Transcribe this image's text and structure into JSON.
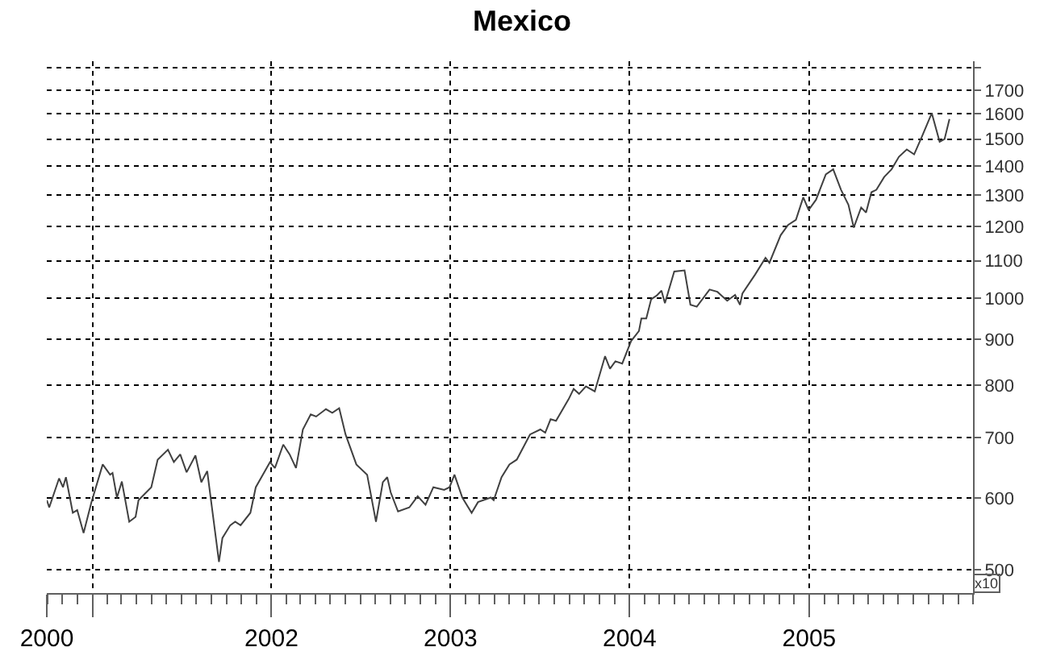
{
  "chart_data": {
    "type": "line",
    "title": "Mexico",
    "x": [
      "2000-09-30",
      "2000-10-05",
      "2000-10-25",
      "2000-11-02",
      "2000-11-08",
      "2000-11-22",
      "2000-12-01",
      "2000-12-14",
      "2000-12-30",
      "2001-01-22",
      "2001-02-06",
      "2001-02-11",
      "2001-02-20",
      "2001-03-02",
      "2001-03-17",
      "2001-03-30",
      "2001-04-05",
      "2001-05-01",
      "2001-05-14",
      "2001-06-04",
      "2001-06-16",
      "2001-06-29",
      "2001-07-12",
      "2001-07-30",
      "2001-08-11",
      "2001-08-23",
      "2001-09-16",
      "2001-09-23",
      "2001-10-09",
      "2001-10-19",
      "2001-10-30",
      "2001-11-19",
      "2001-11-30",
      "2001-12-29",
      "2002-01-08",
      "2002-01-25",
      "2002-02-07",
      "2002-02-20",
      "2002-03-06",
      "2002-03-22",
      "2002-04-02",
      "2002-04-22",
      "2002-05-05",
      "2002-05-19",
      "2002-06-01",
      "2002-06-23",
      "2002-07-15",
      "2002-08-02",
      "2002-08-16",
      "2002-08-25",
      "2002-09-01",
      "2002-09-16",
      "2002-10-09",
      "2002-10-26",
      "2002-11-11",
      "2002-11-27",
      "2002-12-19",
      "2002-12-30",
      "2003-01-09",
      "2003-01-25",
      "2003-02-13",
      "2003-02-26",
      "2003-03-24",
      "2003-03-30",
      "2003-04-15",
      "2003-05-01",
      "2003-05-16",
      "2003-06-12",
      "2003-07-03",
      "2003-07-13",
      "2003-07-24",
      "2003-08-04",
      "2003-08-30",
      "2003-09-09",
      "2003-09-20",
      "2003-10-04",
      "2003-10-22",
      "2003-11-12",
      "2003-11-22",
      "2003-12-03",
      "2003-12-17",
      "2004-01-04",
      "2004-01-20",
      "2004-01-25",
      "2004-02-04",
      "2004-02-14",
      "2004-02-25",
      "2004-03-06",
      "2004-03-13",
      "2004-04-01",
      "2004-04-22",
      "2004-05-04",
      "2004-05-17",
      "2004-06-12",
      "2004-06-28",
      "2004-07-18",
      "2004-08-03",
      "2004-08-13",
      "2004-08-18",
      "2004-09-13",
      "2004-10-04",
      "2004-10-12",
      "2004-11-04",
      "2004-11-19",
      "2004-12-05",
      "2004-12-20",
      "2004-12-31",
      "2005-01-15",
      "2005-02-04",
      "2005-02-19",
      "2005-03-07",
      "2005-03-22",
      "2005-04-02",
      "2005-04-17",
      "2005-04-27",
      "2005-05-08",
      "2005-05-18",
      "2005-06-03",
      "2005-06-18",
      "2005-07-03",
      "2005-07-19",
      "2005-08-03",
      "2005-08-19",
      "2005-09-08",
      "2005-09-24",
      "2005-10-04",
      "2005-10-14"
    ],
    "series": [
      {
        "color": "#404040",
        "values": [
          597,
          586,
          631,
          617,
          633,
          578,
          582,
          549,
          594,
          654,
          637,
          640,
          601,
          626,
          565,
          572,
          597,
          617,
          662,
          679,
          658,
          671,
          641,
          669,
          625,
          643,
          510,
          542,
          560,
          565,
          560,
          578,
          617,
          658,
          648,
          688,
          671,
          648,
          715,
          743,
          739,
          753,
          746,
          755,
          706,
          654,
          637,
          565,
          625,
          633,
          609,
          580,
          586,
          603,
          590,
          617,
          613,
          617,
          637,
          601,
          578,
          594,
          601,
          597,
          633,
          654,
          662,
          706,
          715,
          709,
          734,
          731,
          773,
          793,
          783,
          798,
          788,
          862,
          835,
          851,
          846,
          896,
          919,
          949,
          949,
          997,
          1006,
          1019,
          987,
          1070,
          1073,
          983,
          978,
          1022,
          1016,
          993,
          1008,
          983,
          1012,
          1062,
          1108,
          1094,
          1174,
          1205,
          1221,
          1293,
          1252,
          1285,
          1371,
          1389,
          1318,
          1269,
          1197,
          1260,
          1244,
          1310,
          1318,
          1362,
          1389,
          1434,
          1461,
          1443,
          1510,
          1603,
          1490,
          1500,
          1579
        ]
      }
    ],
    "xlim": [
      "2000-09-30",
      "2005-12-01"
    ],
    "xticks": [
      {
        "value": "2000-09-30",
        "label": "2000"
      },
      {
        "value": "2001-01-01",
        "label": null
      },
      {
        "value": "2002-01-01",
        "label": "2002"
      },
      {
        "value": "2003-01-01",
        "label": "2003"
      },
      {
        "value": "2004-01-01",
        "label": "2004"
      },
      {
        "value": "2005-01-01",
        "label": "2005"
      }
    ],
    "ylim": [
      471,
      1830
    ],
    "yticks": [
      500,
      600,
      700,
      800,
      900,
      1000,
      1100,
      1200,
      1300,
      1400,
      1500,
      1600,
      1700,
      {
        "value": 1800,
        "label": null
      }
    ],
    "log": true,
    "grid": true,
    "marker": "none",
    "line_style": "solid",
    "annotations": [
      "x10"
    ]
  }
}
